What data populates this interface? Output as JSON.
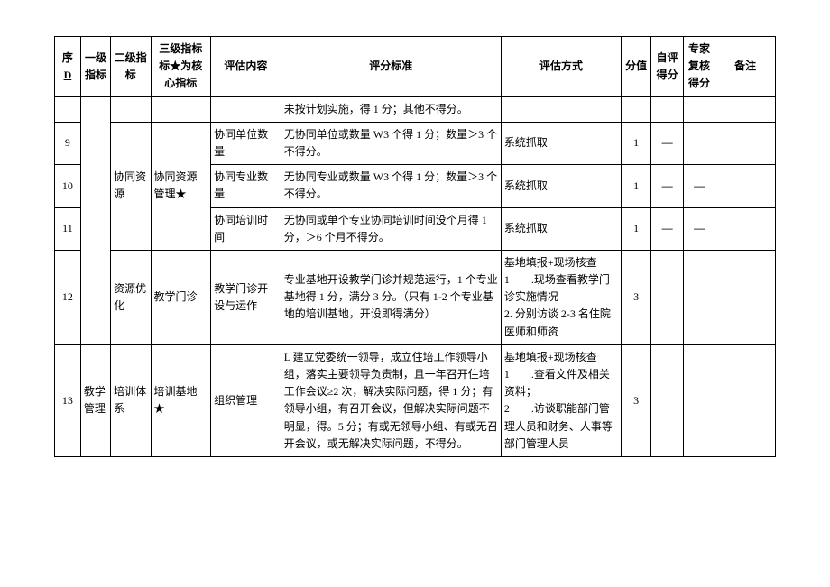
{
  "headers": {
    "seq": "序",
    "seq2": "D",
    "l1": "一级指标",
    "l2": "二级指标",
    "l3": "三级指标标★为核心指标",
    "content": "评估内容",
    "standard": "评分标准",
    "method": "评估方式",
    "score": "分值",
    "self": "自评得分",
    "expert": "专家复核得分",
    "note": "备注"
  },
  "rows": {
    "truncated": {
      "standard": "未按计划实施，得 1 分；其他不得分。"
    },
    "r9": {
      "seq": "9",
      "content": "协同单位数量",
      "standard": "无协同单位或数量 W3 个得 1 分；数量＞3 个不得分。",
      "method": "系统抓取",
      "score": "1",
      "self": "—"
    },
    "r10": {
      "seq": "10",
      "l2": "协同资源",
      "l3": "协同资源管理★",
      "content": "协同专业数量",
      "standard": "无协同专业或数量 W3 个得 1 分；数量＞3 个不得分。",
      "method": "系统抓取",
      "score": "1",
      "self": "—",
      "expert": "—"
    },
    "r11": {
      "seq": "11",
      "content": "协同培训时间",
      "standard": "无协同或单个专业协同培训时间没个月得 1 分，＞6 个月不得分。",
      "method": "系统抓取",
      "score": "1",
      "self": "—",
      "expert": "—"
    },
    "r12": {
      "seq": "12",
      "l2": "资源优化",
      "l3": "教学门诊",
      "content": "教学门诊开设与运作",
      "standard": "专业基地开设教学门诊并规范运行，1 个专业基地得 1 分，满分 3 分。（只有 1-2 个专业基地的培训基地，开设即得满分）",
      "method": "基地填报+现场核查\n1　　.现场查看教学门诊实施情况\n2. 分别访谈 2-3 名住院医师和师资",
      "score": "3"
    },
    "r13": {
      "seq": "13",
      "l1": "教学管理",
      "l2": "培训体系",
      "l3": "培训基地★",
      "content": "组织管理",
      "standard": "L 建立党委统一领导，成立住培工作领导小组，落实主要领导负责制，且一年召开住培工作会议≥2 次，解决实际问题，得 1 分；有领导小组，有召开会议，但解决实际问题不明显，得。5 分；有或无领导小组、有或无召开会议，或无解决实际问题，不得分。",
      "method": "基地填报+现场核查\n1　　.查看文件及相关资料；\n2　　.访谈职能部门管理人员和财务、人事等部门管理人员",
      "score": "3"
    }
  }
}
